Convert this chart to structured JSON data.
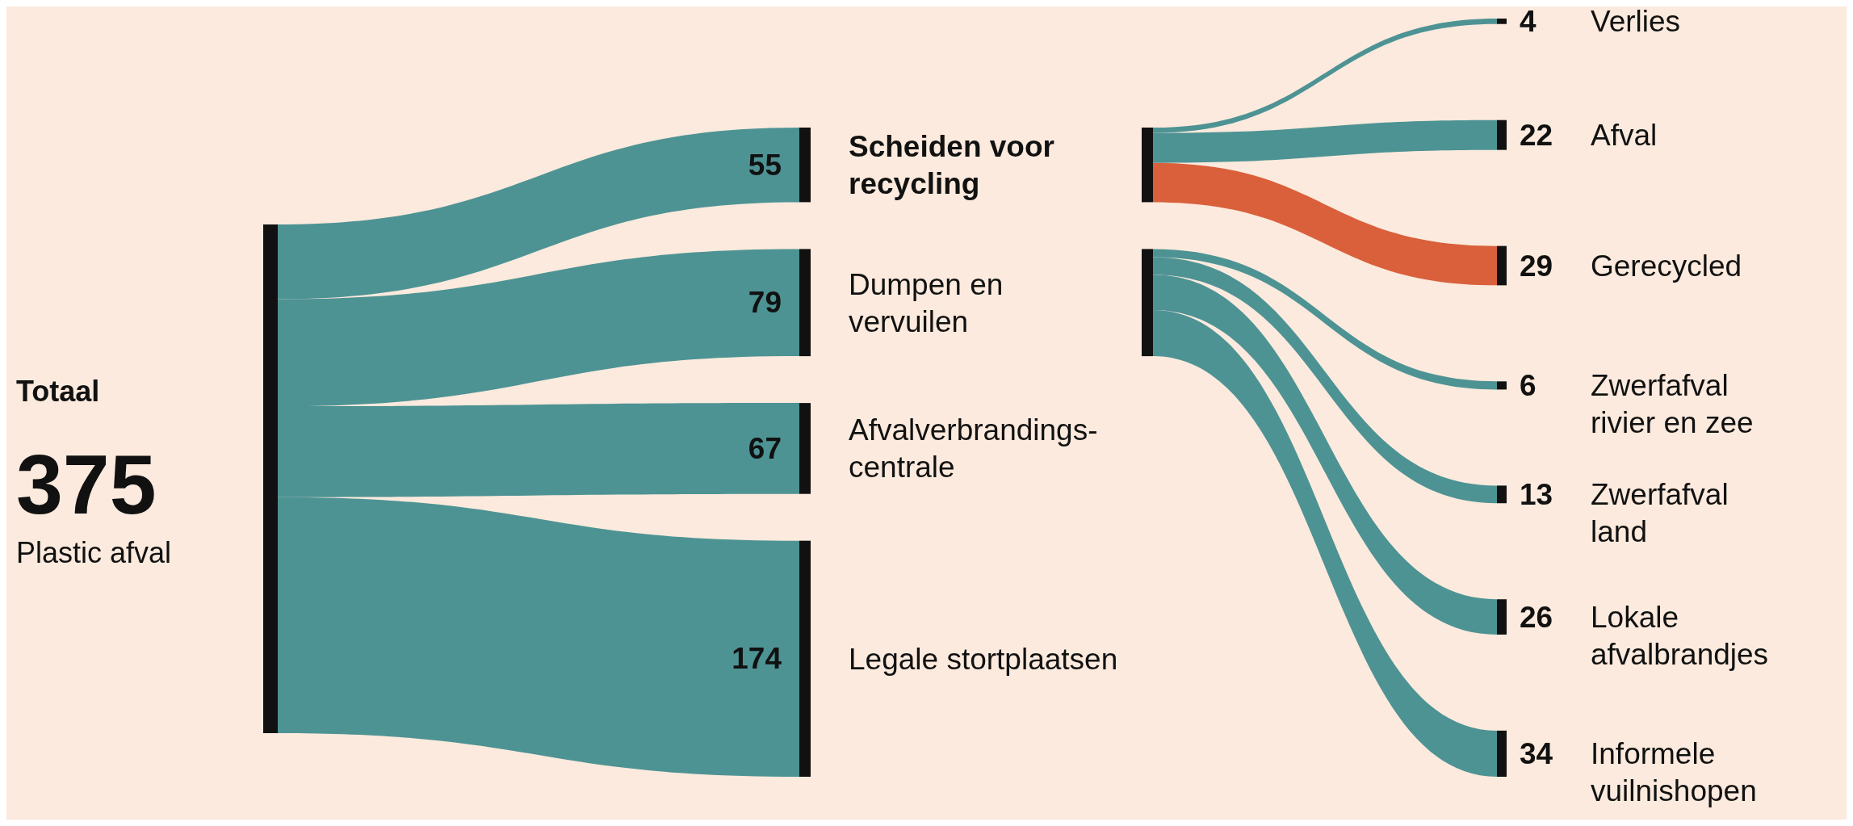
{
  "chart_data": {
    "type": "other",
    "annotations": [
      "Totaal",
      "375",
      "Plastic afval"
    ],
    "data_labels": true,
    "categories": [
      "Scheiden voor\nrecycling",
      "Dumpen en\nvervuilen",
      "Afvalverbrandings-\ncentrale",
      "Legale stortplaatsen",
      "Verlies",
      "Afval",
      "Gerecycled",
      "Zwerfafval\nrivier en zee",
      "Zwerfafval\nland",
      "Lokale\nafvalbrandjes",
      "Informele\nvuilnishopen"
    ],
    "series": [
      {
        "color": "#4e9394",
        "values": [
          55,
          79,
          67,
          174,
          null,
          null,
          null,
          null,
          null,
          null,
          null
        ]
      },
      {
        "color": "#4e9394",
        "colors": [
          null,
          null,
          null,
          null,
          "#4e9394",
          "#4e9394",
          "#d9603b",
          null,
          null,
          null,
          null
        ],
        "values": [
          null,
          null,
          null,
          null,
          4,
          22,
          29,
          null,
          null,
          null,
          null
        ]
      },
      {
        "color": "#4e9394",
        "values": [
          null,
          null,
          null,
          null,
          null,
          null,
          null,
          6,
          13,
          26,
          34
        ]
      }
    ]
  }
}
